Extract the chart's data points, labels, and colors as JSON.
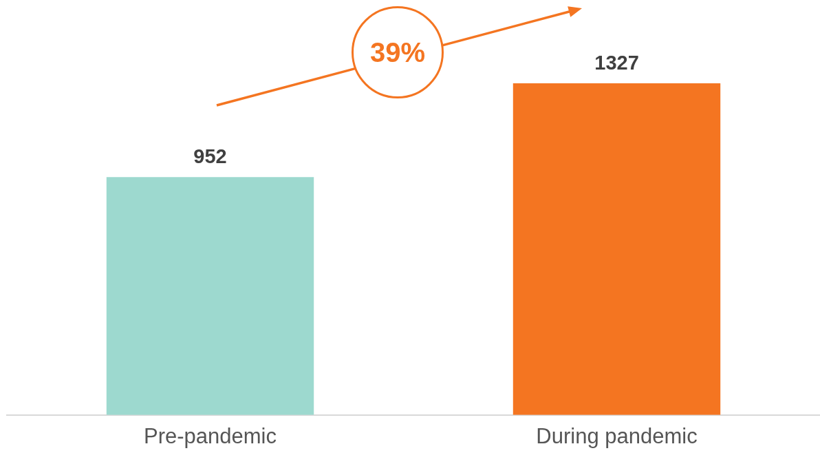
{
  "chart_data": {
    "type": "bar",
    "categories": [
      "Pre-pandemic",
      "During pandemic"
    ],
    "values": [
      952,
      1327
    ],
    "colors": [
      "#9dd9cf",
      "#f47521"
    ],
    "tick_labels": "x",
    "grid": false,
    "legend": false,
    "data_labels": true,
    "annotations": [
      "39%"
    ]
  }
}
